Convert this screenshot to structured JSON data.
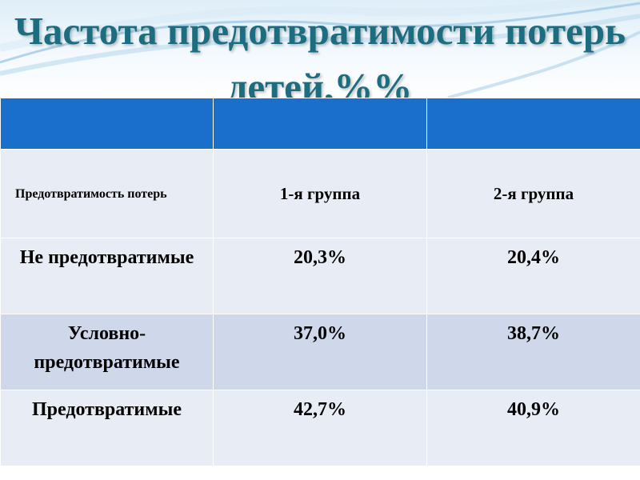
{
  "slide": {
    "title": "Частота предотвратимости потерь детей,%%",
    "colors": {
      "title": "#1d6d80",
      "header_band": "#1a6fcc",
      "row_dark": "#cfd7ea",
      "row_light": "#e8ecf5"
    }
  },
  "table": {
    "header": [
      "Предотвратимость потерь",
      "1-я группа",
      "2-я группа"
    ],
    "rows": [
      {
        "label": "Не предотвратимые",
        "group1": "20,3%",
        "group2": "20,4%"
      },
      {
        "label": "Условно-предотвратимые",
        "group1": "37,0%",
        "group2": "38,7%"
      },
      {
        "label": "Предотвратимые",
        "group1": "42,7%",
        "group2": "40,9%"
      }
    ]
  }
}
